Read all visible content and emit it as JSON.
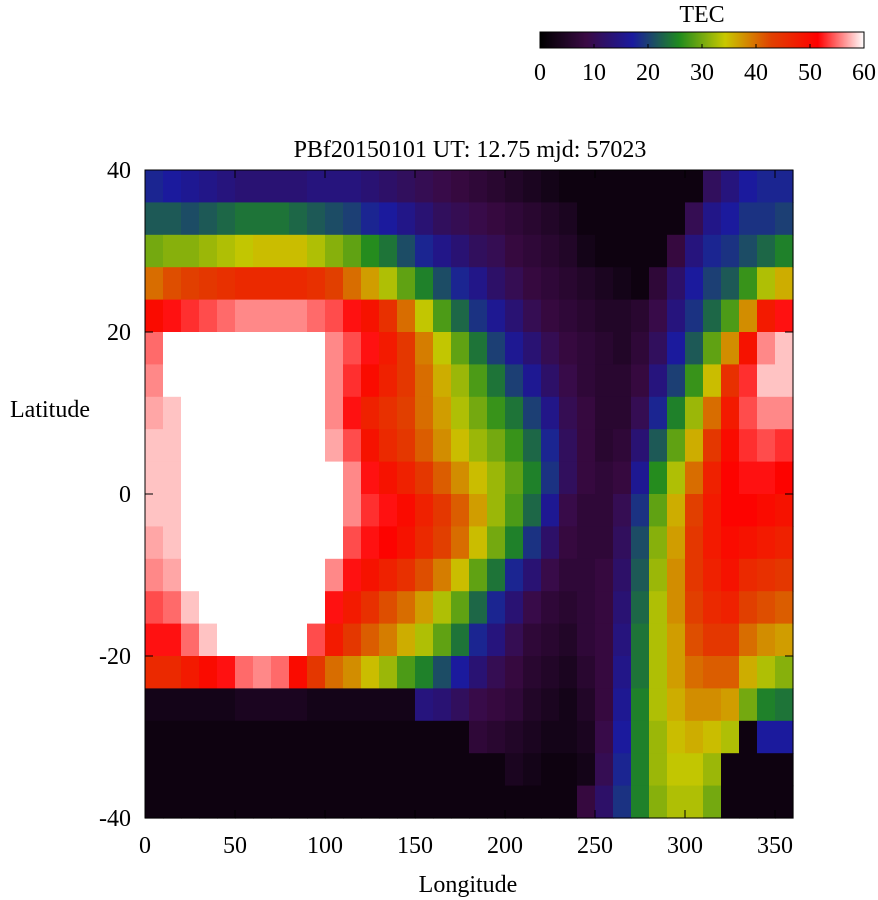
{
  "chart_data": {
    "type": "heatmap",
    "title": "PBf20150101  UT: 12.75  mjd: 57023",
    "xlabel": "Longitude",
    "ylabel": "Latitude",
    "xlim": [
      0,
      360
    ],
    "ylim": [
      -40,
      40
    ],
    "x_ticks": [
      "0",
      "50",
      "100",
      "150",
      "200",
      "250",
      "300",
      "350"
    ],
    "x_tick_values": [
      0,
      50,
      100,
      150,
      200,
      250,
      300,
      350
    ],
    "y_ticks": [
      "40",
      "20",
      "0",
      "-20",
      "-40"
    ],
    "y_tick_values": [
      40,
      20,
      0,
      -20,
      -40
    ],
    "colorbar": {
      "label": "TEC",
      "range": [
        0,
        60
      ],
      "ticks": [
        "0",
        "10",
        "20",
        "30",
        "40",
        "50",
        "60"
      ],
      "tick_values": [
        0,
        10,
        20,
        30,
        40,
        50,
        60
      ],
      "colors": [
        "#000000",
        "#3a0a44",
        "#1a1a9e",
        "#1f8a1f",
        "#c8c800",
        "#e04000",
        "#ff0000",
        "#ffffff"
      ]
    },
    "grid": false,
    "longitude_step": 10,
    "latitude_values": [
      38,
      34,
      30,
      26,
      22,
      18,
      14,
      10,
      6,
      2,
      -2,
      -6,
      -10,
      -14,
      -18,
      -22,
      -26,
      -30,
      -34,
      -38
    ],
    "tec_columns": [
      {
        "lon": 0,
        "tec": [
          18,
          22,
          30,
          40,
          50,
          55,
          56,
          57,
          58,
          58,
          58,
          57,
          56,
          54,
          52,
          46,
          3,
          2,
          2,
          2
        ]
      },
      {
        "lon": 10,
        "tec": [
          17,
          22,
          31,
          42,
          52,
          60,
          60,
          58,
          58,
          58,
          58,
          58,
          57,
          55,
          52,
          46,
          3,
          2,
          2,
          2
        ]
      },
      {
        "lon": 20,
        "tec": [
          16,
          21,
          31,
          43,
          53,
          60,
          62,
          62,
          62,
          62,
          62,
          62,
          60,
          58,
          55,
          48,
          3,
          2,
          2,
          2
        ]
      },
      {
        "lon": 30,
        "tec": [
          15,
          22,
          32,
          44,
          54,
          62,
          64,
          64,
          64,
          64,
          64,
          64,
          63,
          62,
          58,
          50,
          3,
          2,
          2,
          2
        ]
      },
      {
        "lon": 40,
        "tec": [
          14,
          23,
          33,
          45,
          55,
          62,
          64,
          64,
          64,
          64,
          64,
          64,
          64,
          64,
          62,
          52,
          3,
          2,
          2,
          2
        ]
      },
      {
        "lon": 50,
        "tec": [
          13,
          24,
          34,
          46,
          56,
          62,
          64,
          64,
          64,
          64,
          64,
          64,
          64,
          64,
          64,
          55,
          4,
          2,
          2,
          2
        ]
      },
      {
        "lon": 60,
        "tec": [
          13,
          24,
          35,
          46,
          56,
          62,
          64,
          64,
          64,
          64,
          64,
          64,
          64,
          64,
          64,
          56,
          4,
          2,
          2,
          2
        ]
      },
      {
        "lon": 70,
        "tec": [
          13,
          24,
          35,
          46,
          56,
          62,
          64,
          64,
          64,
          64,
          64,
          64,
          64,
          64,
          64,
          55,
          4,
          2,
          2,
          2
        ]
      },
      {
        "lon": 80,
        "tec": [
          13,
          23,
          35,
          46,
          56,
          63,
          64,
          64,
          64,
          64,
          64,
          64,
          64,
          64,
          60,
          50,
          4,
          2,
          2,
          2
        ]
      },
      {
        "lon": 90,
        "tec": [
          14,
          22,
          33,
          45,
          55,
          61,
          62,
          62,
          62,
          62,
          64,
          64,
          64,
          60,
          54,
          44,
          3,
          2,
          2,
          2
        ]
      },
      {
        "lon": 100,
        "tec": [
          14,
          21,
          31,
          43,
          54,
          56,
          56,
          56,
          57,
          60,
          62,
          60,
          56,
          52,
          48,
          40,
          3,
          2,
          2,
          2
        ]
      },
      {
        "lon": 110,
        "tec": [
          14,
          20,
          29,
          40,
          52,
          54,
          53,
          52,
          54,
          56,
          56,
          54,
          52,
          48,
          44,
          38,
          3,
          2,
          2,
          2
        ]
      },
      {
        "lon": 120,
        "tec": [
          13,
          18,
          26,
          37,
          49,
          52,
          50,
          47,
          49,
          52,
          53,
          52,
          49,
          45,
          41,
          35,
          3,
          2,
          2,
          2
        ]
      },
      {
        "lon": 130,
        "tec": [
          12,
          17,
          24,
          33,
          45,
          48,
          47,
          45,
          46,
          49,
          52,
          51,
          47,
          42,
          39,
          32,
          3,
          2,
          2,
          2
        ]
      },
      {
        "lon": 140,
        "tec": [
          11,
          15,
          21,
          29,
          40,
          44,
          44,
          43,
          44,
          47,
          50,
          49,
          45,
          40,
          36,
          28,
          3,
          2,
          2,
          2
        ]
      },
      {
        "lon": 150,
        "tec": [
          10,
          13,
          18,
          25,
          34,
          39,
          40,
          40,
          41,
          44,
          47,
          46,
          42,
          37,
          33,
          25,
          14,
          2,
          2,
          2
        ]
      },
      {
        "lon": 160,
        "tec": [
          9,
          11,
          15,
          21,
          28,
          34,
          36,
          37,
          38,
          41,
          44,
          43,
          39,
          33,
          29,
          21,
          13,
          2,
          2,
          2
        ]
      },
      {
        "lon": 170,
        "tec": [
          8,
          10,
          13,
          18,
          23,
          29,
          32,
          33,
          35,
          38,
          41,
          40,
          35,
          29,
          24,
          17,
          11,
          2,
          2,
          2
        ]
      },
      {
        "lon": 180,
        "tec": [
          7,
          9,
          11,
          15,
          19,
          24,
          28,
          30,
          32,
          35,
          37,
          35,
          29,
          23,
          18,
          13,
          9,
          7,
          2,
          2
        ]
      },
      {
        "lon": 190,
        "tec": [
          6,
          8,
          10,
          12,
          16,
          20,
          24,
          27,
          30,
          32,
          32,
          30,
          24,
          18,
          14,
          10,
          8,
          6,
          2,
          2
        ]
      },
      {
        "lon": 200,
        "tec": [
          5,
          7,
          8,
          10,
          13,
          16,
          20,
          24,
          27,
          29,
          28,
          25,
          18,
          13,
          10,
          8,
          7,
          5,
          4,
          2
        ]
      },
      {
        "lon": 210,
        "tec": [
          4,
          6,
          7,
          8,
          10,
          13,
          16,
          20,
          23,
          25,
          23,
          19,
          13,
          9,
          7,
          6,
          5,
          4,
          3,
          2
        ]
      },
      {
        "lon": 220,
        "tec": [
          3,
          5,
          6,
          7,
          8,
          10,
          12,
          15,
          18,
          19,
          16,
          12,
          9,
          7,
          6,
          5,
          4,
          3,
          2,
          2
        ]
      },
      {
        "lon": 230,
        "tec": [
          2,
          4,
          5,
          6,
          7,
          8,
          9,
          10,
          11,
          11,
          9,
          8,
          7,
          6,
          5,
          4,
          3,
          3,
          2,
          2
        ]
      },
      {
        "lon": 240,
        "tec": [
          2,
          2,
          3,
          5,
          6,
          7,
          7,
          8,
          8,
          8,
          7,
          7,
          7,
          7,
          7,
          6,
          5,
          4,
          3,
          8
        ]
      },
      {
        "lon": 250,
        "tec": [
          2,
          2,
          2,
          4,
          5,
          6,
          6,
          6,
          6,
          7,
          7,
          7,
          8,
          8,
          8,
          8,
          8,
          9,
          10,
          12
        ]
      },
      {
        "lon": 260,
        "tec": [
          2,
          2,
          2,
          3,
          5,
          5,
          6,
          6,
          7,
          8,
          10,
          11,
          12,
          13,
          14,
          15,
          16,
          17,
          18,
          19
        ]
      },
      {
        "lon": 270,
        "tec": [
          2,
          2,
          2,
          2,
          6,
          7,
          8,
          10,
          13,
          16,
          19,
          21,
          22,
          23,
          24,
          24,
          25,
          25,
          25,
          25
        ]
      },
      {
        "lon": 280,
        "tec": [
          2,
          2,
          2,
          7,
          9,
          11,
          14,
          18,
          22,
          26,
          29,
          31,
          32,
          33,
          33,
          33,
          33,
          32,
          32,
          31
        ]
      },
      {
        "lon": 290,
        "tec": [
          2,
          2,
          8,
          12,
          14,
          17,
          20,
          25,
          29,
          33,
          36,
          37,
          38,
          38,
          37,
          37,
          36,
          35,
          34,
          33
        ]
      },
      {
        "lon": 300,
        "tec": [
          2,
          10,
          14,
          17,
          19,
          22,
          27,
          32,
          36,
          40,
          43,
          44,
          44,
          43,
          42,
          40,
          38,
          36,
          34,
          33
        ]
      },
      {
        "lon": 310,
        "tec": [
          11,
          15,
          18,
          20,
          23,
          29,
          35,
          40,
          44,
          47,
          48,
          48,
          47,
          46,
          44,
          41,
          38,
          35,
          32,
          30
        ]
      },
      {
        "lon": 320,
        "tec": [
          14,
          17,
          19,
          22,
          28,
          38,
          45,
          48,
          50,
          51,
          51,
          50,
          49,
          47,
          44,
          41,
          37,
          33,
          2,
          2
        ]
      },
      {
        "lon": 330,
        "tec": [
          17,
          19,
          21,
          27,
          38,
          49,
          53,
          54,
          53,
          52,
          51,
          49,
          46,
          43,
          40,
          36,
          30,
          2,
          2,
          2
        ]
      },
      {
        "lon": 340,
        "tec": [
          18,
          19,
          23,
          33,
          48,
          56,
          58,
          56,
          54,
          52,
          50,
          48,
          45,
          42,
          38,
          33,
          25,
          17,
          2,
          2
        ]
      },
      {
        "lon": 350,
        "tec": [
          18,
          20,
          25,
          36,
          52,
          58,
          58,
          56,
          53,
          51,
          49,
          47,
          44,
          41,
          37,
          31,
          24,
          17,
          2,
          2
        ]
      }
    ]
  }
}
